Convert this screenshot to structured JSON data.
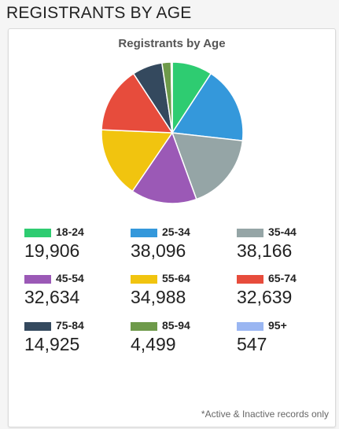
{
  "header": {
    "title": "REGISTRANTS BY AGE"
  },
  "chart_data": {
    "type": "pie",
    "title": "Registrants by Age",
    "categories": [
      "18-24",
      "25-34",
      "35-44",
      "45-54",
      "55-64",
      "65-74",
      "75-84",
      "85-94",
      "95+"
    ],
    "values": [
      19906,
      38096,
      38166,
      32634,
      34988,
      32639,
      14925,
      4499,
      547
    ],
    "display_values": [
      "19,906",
      "38,096",
      "38,166",
      "32,634",
      "34,988",
      "32,639",
      "14,925",
      "4,499",
      "547"
    ],
    "colors": [
      "#2ecc71",
      "#3498db",
      "#95a5a6",
      "#9b59b6",
      "#f1c40f",
      "#e74c3c",
      "#34495e",
      "#6e9a4a",
      "#9ab6f2"
    ],
    "legend_placement": "bottom"
  },
  "footnote": "*Active & Inactive records only"
}
